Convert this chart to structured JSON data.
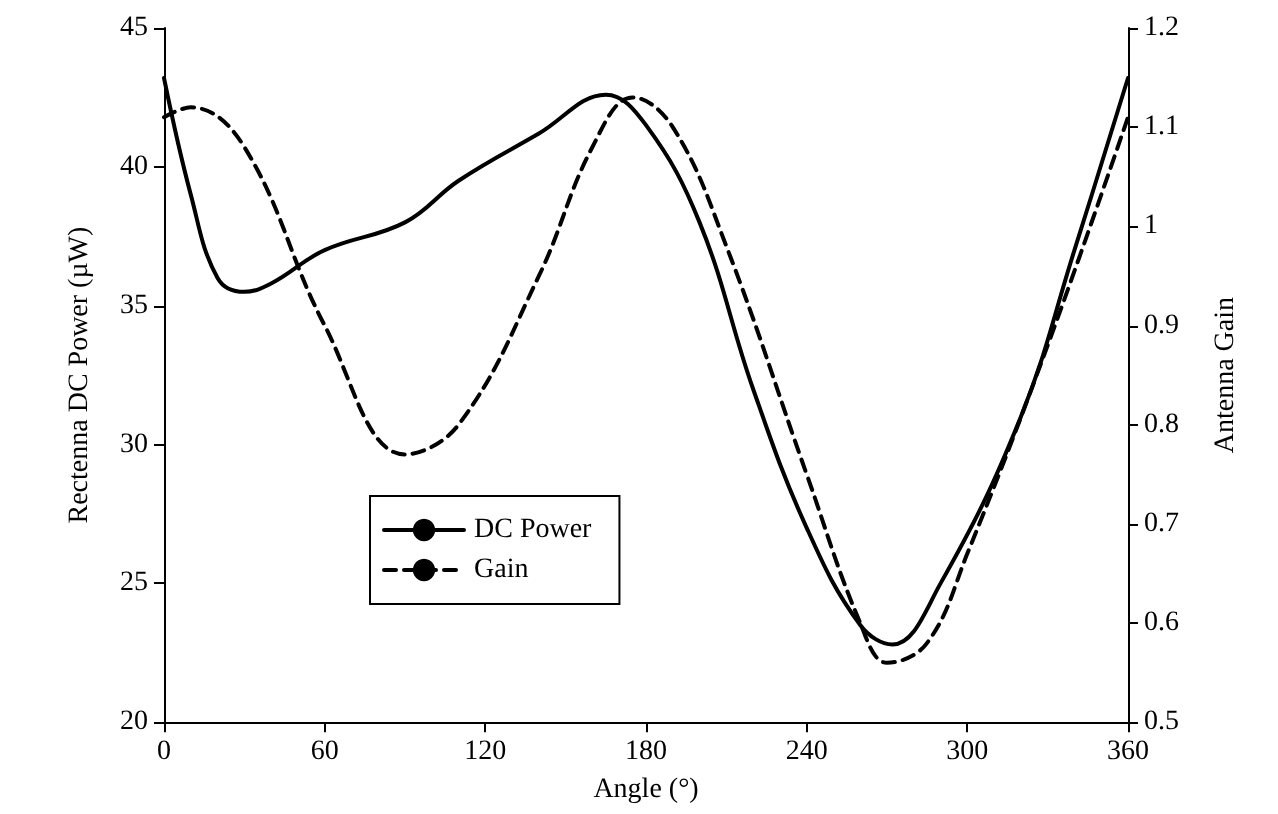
{
  "chart_data": {
    "type": "line",
    "xlabel": "Angle (°)",
    "ylabel": "Rectenna DC Power (µW)",
    "y2label": "Antenna Gain",
    "xlim": [
      0,
      360
    ],
    "xticks": [
      0,
      60,
      120,
      180,
      240,
      300,
      360
    ],
    "ylim": [
      20,
      45
    ],
    "yticks": [
      20,
      25,
      30,
      35,
      40,
      45
    ],
    "y2lim": [
      0.5,
      1.2
    ],
    "y2ticks": [
      0.5,
      0.6,
      0.7,
      0.8,
      0.9,
      1,
      1.1,
      1.2
    ],
    "grid": false,
    "legend": "bottom left",
    "marker": "none",
    "series": [
      {
        "name": "DC Power",
        "color": "#000000",
        "line_style": "solid",
        "x": [
          0,
          10,
          20,
          30,
          40,
          60,
          90,
          110,
          140,
          165,
          180,
          200,
          220,
          240,
          260,
          272,
          290,
          320,
          340,
          360
        ],
        "values": [
          43.2,
          39,
          36,
          35.5,
          35.8,
          37,
          38,
          39.5,
          41.2,
          42.6,
          41.5,
          38,
          32,
          27,
          23.5,
          22.8,
          25,
          31,
          37,
          43.2
        ]
      },
      {
        "name": "Gain",
        "color": "#000000",
        "line_style": "dashed",
        "axis": "y2",
        "x": [
          0,
          10,
          30,
          60,
          90,
          110,
          140,
          160,
          175,
          190,
          210,
          240,
          260,
          270,
          285,
          300,
          330,
          360
        ],
        "values": [
          1.11,
          1.12,
          1.08,
          0.9,
          0.77,
          0.8,
          0.95,
          1.08,
          1.13,
          1.1,
          0.98,
          0.75,
          0.6,
          0.56,
          0.58,
          0.67,
          0.88,
          1.11
        ]
      }
    ]
  }
}
